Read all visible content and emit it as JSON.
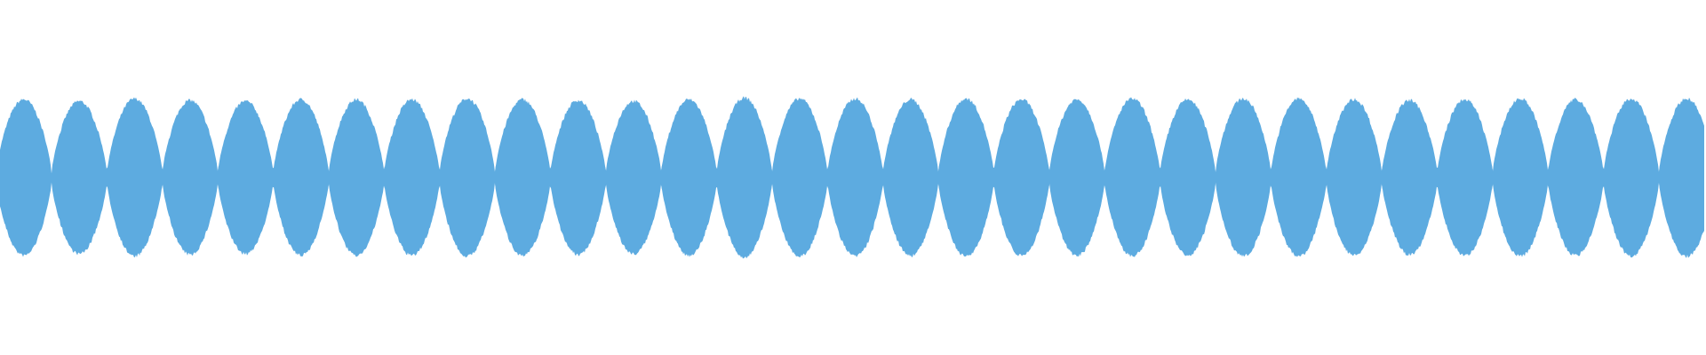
{
  "chart_data": {
    "type": "area",
    "title": "",
    "xlabel": "",
    "ylabel": "",
    "ylim": [
      -1,
      1
    ],
    "grid": false,
    "legend": "none",
    "color": "#5DABE0",
    "series": [
      {
        "lobe_peak_amplitudes": [
          0.95,
          0.93,
          0.96,
          0.94,
          0.93,
          0.95,
          0.95,
          0.95,
          0.96,
          0.95,
          0.94,
          0.93,
          0.95,
          0.97,
          0.96,
          0.96,
          0.95,
          0.96,
          0.95,
          0.95,
          0.96,
          0.95,
          0.96,
          0.96,
          0.95,
          0.94,
          0.95,
          0.96,
          0.95,
          0.96,
          0.96
        ],
        "node_amplitude": 0.05
      }
    ]
  }
}
